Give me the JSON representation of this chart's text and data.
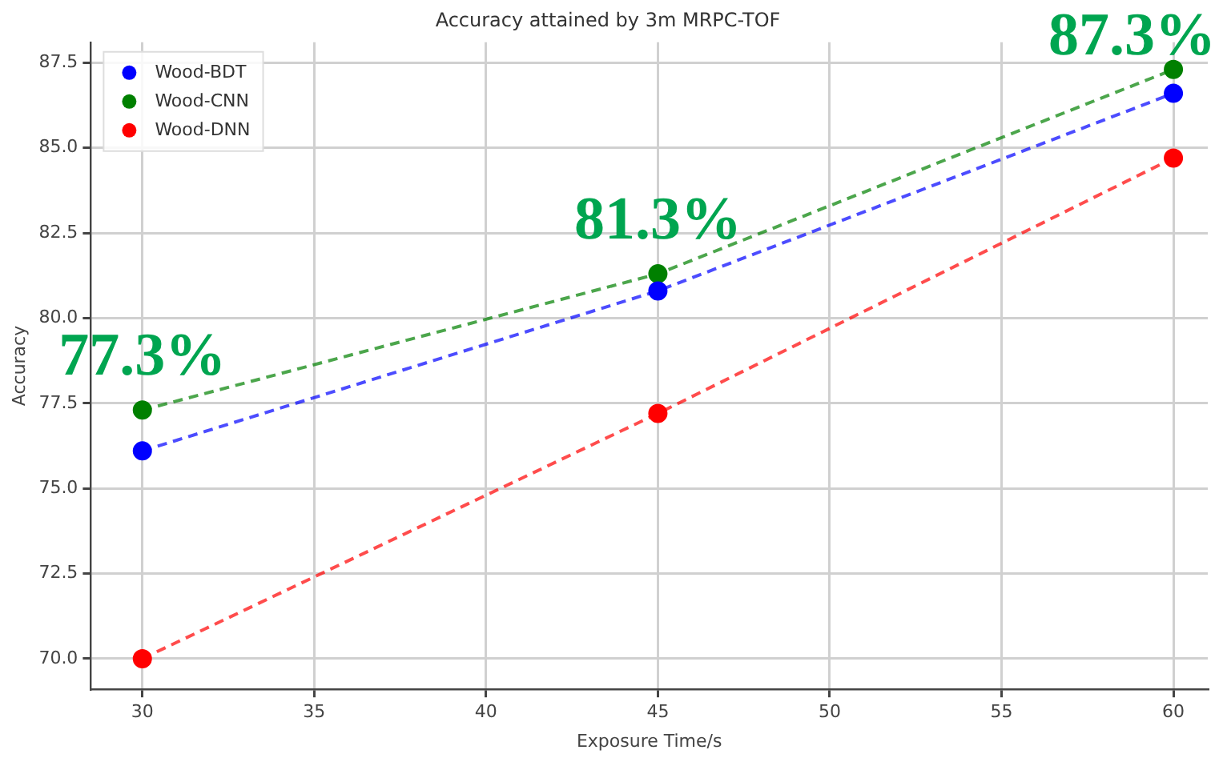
{
  "chart_data": {
    "type": "line",
    "title": "Accuracy attained by 3m MRPC-TOF",
    "xlabel": "Exposure Time/s",
    "ylabel": "Accuracy",
    "x": [
      30,
      45,
      60
    ],
    "series": [
      {
        "name": "Wood-BDT",
        "color": "#0000ff",
        "values": [
          76.1,
          80.8,
          86.6
        ]
      },
      {
        "name": "Wood-CNN",
        "color": "#008000",
        "values": [
          77.3,
          81.3,
          87.3
        ]
      },
      {
        "name": "Wood-DNN",
        "color": "#ff0000",
        "values": [
          70.0,
          77.2,
          84.7
        ]
      }
    ],
    "xlim": [
      28.5,
      61.0
    ],
    "xticks": [
      30,
      35,
      40,
      45,
      50,
      55,
      60
    ],
    "ylim": [
      69.1,
      88.1
    ],
    "yticks": [
      {
        "value": 70,
        "label": "70.0"
      },
      {
        "value": 72.5,
        "label": "72.5"
      },
      {
        "value": 75,
        "label": "75.0"
      },
      {
        "value": 77.5,
        "label": "77.5"
      },
      {
        "value": 80,
        "label": "80.0"
      },
      {
        "value": 82.5,
        "label": "82.5"
      },
      {
        "value": 85,
        "label": "85.0"
      },
      {
        "value": 87.5,
        "label": "87.5"
      }
    ],
    "annotations": [
      {
        "text": "77.3%",
        "x": 30,
        "y": 77.3
      },
      {
        "text": "81.3%",
        "x": 45,
        "y": 81.3
      },
      {
        "text": "87.3%",
        "x": 60,
        "y": 87.3
      }
    ],
    "grid": true,
    "legend": "top left",
    "marker": "circle",
    "line_style": "dashed"
  }
}
